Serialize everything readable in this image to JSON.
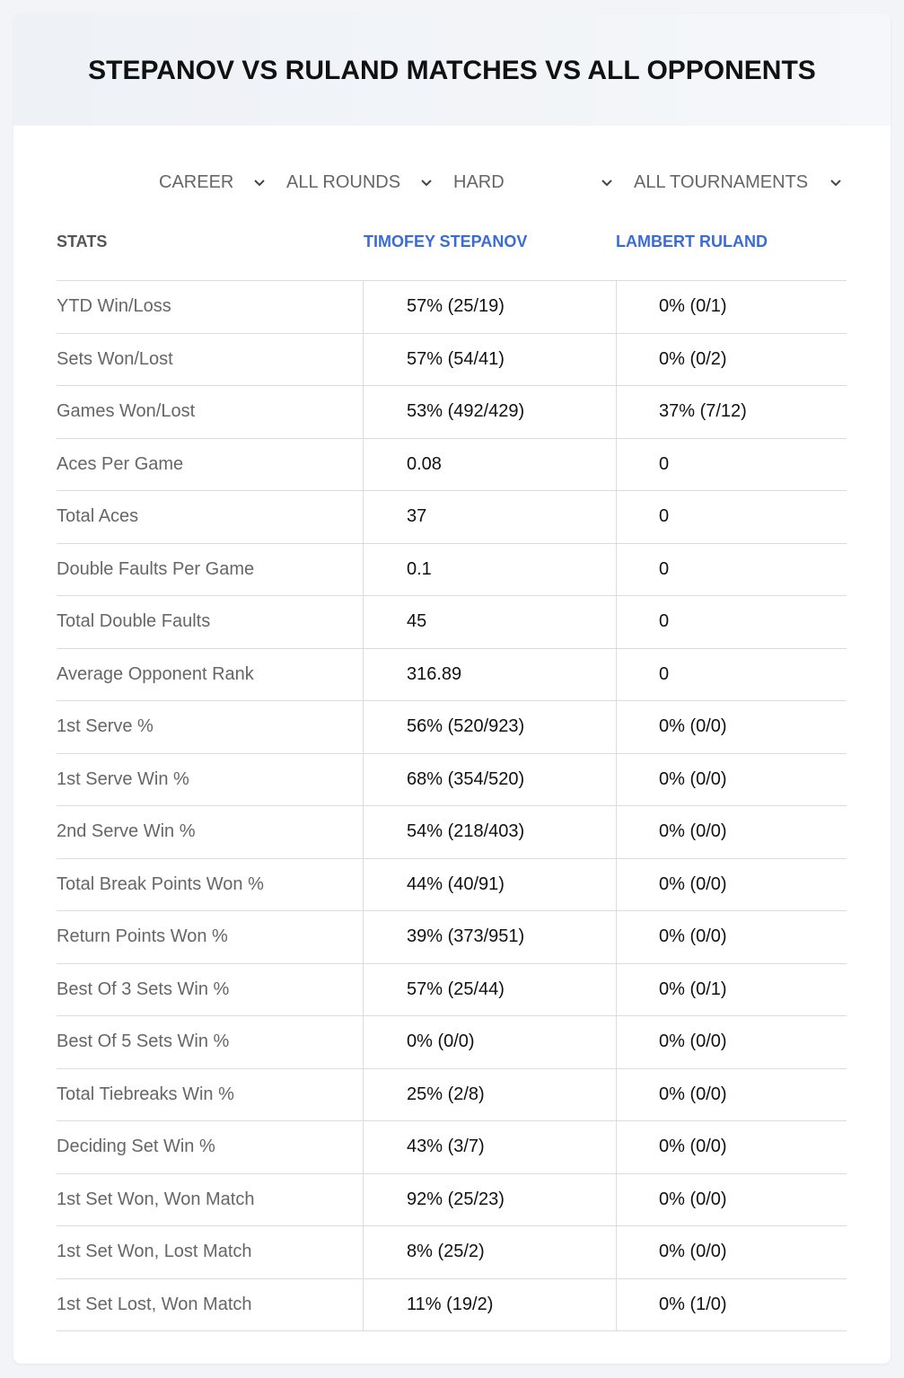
{
  "header": {
    "title": "STEPANOV VS RULAND MATCHES VS ALL OPPONENTS"
  },
  "filters": [
    "CAREER",
    "ALL ROUNDS",
    "HARD",
    "ALL TOURNAMENTS"
  ],
  "table": {
    "columns": [
      "STATS",
      "TIMOFEY STEPANOV",
      "LAMBERT RULAND"
    ],
    "rows": [
      [
        "YTD Win/Loss",
        "57% (25/19)",
        "0% (0/1)"
      ],
      [
        "Sets Won/Lost",
        "57% (54/41)",
        "0% (0/2)"
      ],
      [
        "Games Won/Lost",
        "53% (492/429)",
        "37% (7/12)"
      ],
      [
        "Aces Per Game",
        "0.08",
        "0"
      ],
      [
        "Total Aces",
        "37",
        "0"
      ],
      [
        "Double Faults Per Game",
        "0.1",
        "0"
      ],
      [
        "Total Double Faults",
        "45",
        "0"
      ],
      [
        "Average Opponent Rank",
        "316.89",
        "0"
      ],
      [
        "1st Serve %",
        "56% (520/923)",
        "0% (0/0)"
      ],
      [
        "1st Serve Win %",
        "68% (354/520)",
        "0% (0/0)"
      ],
      [
        "2nd Serve Win %",
        "54% (218/403)",
        "0% (0/0)"
      ],
      [
        "Total Break Points Won %",
        "44% (40/91)",
        "0% (0/0)"
      ],
      [
        "Return Points Won %",
        "39% (373/951)",
        "0% (0/0)"
      ],
      [
        "Best Of 3 Sets Win %",
        "57% (25/44)",
        "0% (0/1)"
      ],
      [
        "Best Of 5 Sets Win %",
        "0% (0/0)",
        "0% (0/0)"
      ],
      [
        "Total Tiebreaks Win %",
        "25% (2/8)",
        "0% (0/0)"
      ],
      [
        "Deciding Set Win %",
        "43% (3/7)",
        "0% (0/0)"
      ],
      [
        "1st Set Won, Won Match",
        "92% (25/23)",
        "0% (0/0)"
      ],
      [
        "1st Set Won, Lost Match",
        "8% (25/2)",
        "0% (0/0)"
      ],
      [
        "1st Set Lost, Won Match",
        "11% (19/2)",
        "0% (1/0)"
      ]
    ]
  }
}
